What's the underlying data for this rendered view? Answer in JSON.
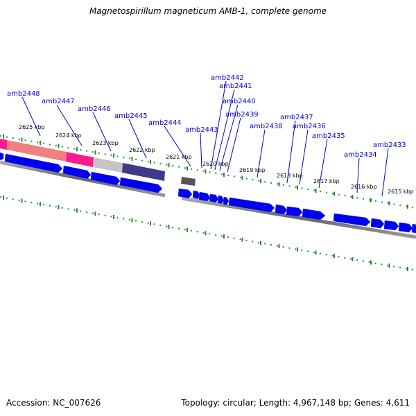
{
  "title": "Magnetospirillum magneticum AMB-1, complete genome",
  "footer": {
    "accession": "Accession: NC_007626",
    "topology": "Topology: circular; Length: 4,967,148 bp; Genes: 4,611"
  },
  "colors": {
    "gene": "#0000ee",
    "gene_highlight": "#5555ff",
    "tick": "#2a8a2a",
    "backbone": "#777777",
    "label": "#0000cc",
    "feature_pink": "#ff1a8c",
    "feature_salmon": "#f08080",
    "feature_gray": "#bbbbbb",
    "feature_navy": "#3b3b88",
    "feature_dark": "#555555"
  },
  "kbp_labels": [
    "2625 kbp",
    "2624 kbp",
    "2623 kbp",
    "2622 kbp",
    "2621 kbp",
    "2620 kbp",
    "2619 kbp",
    "2618 kbp",
    "2617 kbp",
    "2616 kbp",
    "2615 kbp"
  ],
  "gene_labels": [
    "amb2448",
    "amb2447",
    "amb2446",
    "amb2445",
    "amb2444",
    "amb2443",
    "amb2442",
    "amb2441",
    "amb2440",
    "amb2439",
    "amb2438",
    "amb2437",
    "amb2436",
    "amb2435",
    "amb2434",
    "amb2433"
  ]
}
